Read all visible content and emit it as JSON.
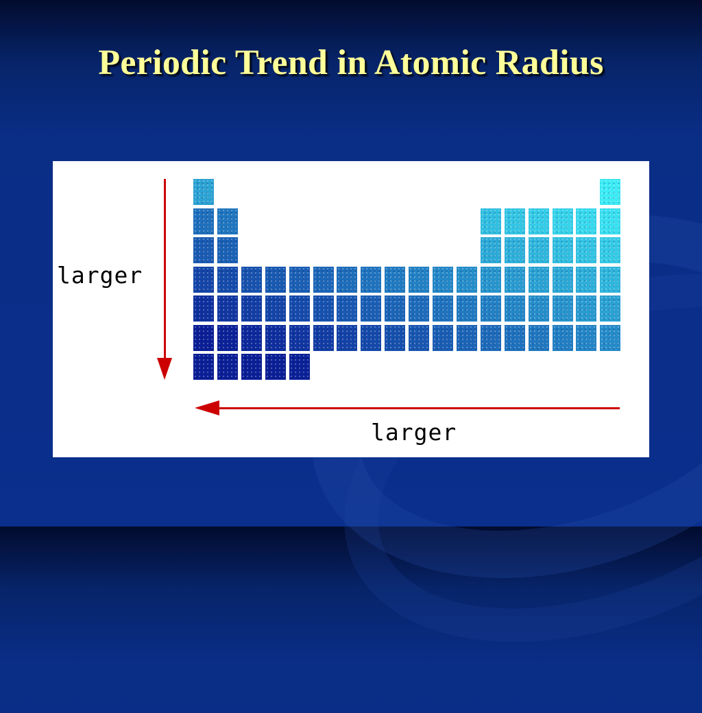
{
  "slide": {
    "title": "Periodic Trend in Atomic Radius"
  },
  "diagram": {
    "vertical_trend": {
      "label": "larger",
      "direction": "down"
    },
    "horizontal_trend": {
      "label": "larger",
      "direction": "left"
    },
    "colors": {
      "arrow": "#cc0000",
      "title": "#ffff99",
      "background": "#0a2f8c",
      "panel": "#ffffff"
    },
    "periodic_table": {
      "shading_note": "darker blue indicates larger atomic radius",
      "rows": [
        {
          "period": 1,
          "groups": [
            1,
            18
          ]
        },
        {
          "period": 2,
          "groups": [
            1,
            2,
            13,
            14,
            15,
            16,
            17,
            18
          ]
        },
        {
          "period": 3,
          "groups": [
            1,
            2,
            13,
            14,
            15,
            16,
            17,
            18
          ]
        },
        {
          "period": 4,
          "groups": [
            1,
            2,
            3,
            4,
            5,
            6,
            7,
            8,
            9,
            10,
            11,
            12,
            13,
            14,
            15,
            16,
            17,
            18
          ]
        },
        {
          "period": 5,
          "groups": [
            1,
            2,
            3,
            4,
            5,
            6,
            7,
            8,
            9,
            10,
            11,
            12,
            13,
            14,
            15,
            16,
            17,
            18
          ]
        },
        {
          "period": 6,
          "groups": [
            1,
            2,
            3,
            4,
            5,
            6,
            7,
            8,
            9,
            10,
            11,
            12,
            13,
            14,
            15,
            16,
            17,
            18
          ]
        },
        {
          "period": 7,
          "groups": [
            1,
            2,
            3,
            4,
            5
          ]
        }
      ]
    }
  }
}
